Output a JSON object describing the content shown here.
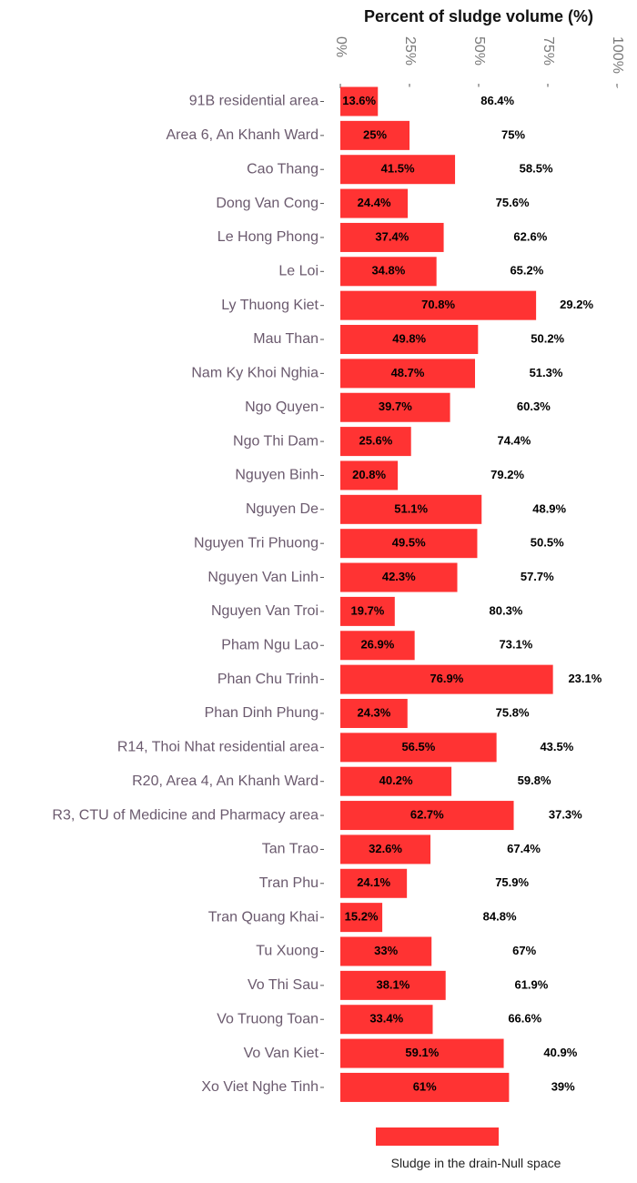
{
  "chart_data": {
    "type": "bar",
    "orientation": "horizontal",
    "stacked": true,
    "title": "Percent of sludge volume (%)",
    "xlim": [
      0,
      100
    ],
    "x_ticks": [
      {
        "value": 0,
        "label": "0%"
      },
      {
        "value": 25,
        "label": "25%"
      },
      {
        "value": 50,
        "label": "50%"
      },
      {
        "value": 75,
        "label": "75%"
      },
      {
        "value": 100,
        "label": "100%"
      }
    ],
    "grid": false,
    "legend_position": "bottom",
    "legend": {
      "items": [
        "Sludge in the drain",
        "Null space"
      ],
      "separator": "-"
    },
    "categories": [
      "91B residential area",
      "Area 6, An Khanh Ward",
      "Cao Thang",
      "Dong Van Cong",
      "Le Hong Phong",
      "Le Loi",
      "Ly Thuong Kiet",
      "Mau Than",
      "Nam Ky Khoi Nghia",
      "Ngo Quyen",
      "Ngo Thi Dam",
      "Nguyen Binh",
      "Nguyen De",
      "Nguyen Tri Phuong",
      "Nguyen Van Linh",
      "Nguyen Van Troi",
      "Pham Ngu Lao",
      "Phan Chu Trinh",
      "Phan Dinh Phung",
      "R14, Thoi Nhat residential area",
      "R20, Area 4, An Khanh Ward",
      "R3, CTU of Medicine and Pharmacy area",
      "Tan Trao",
      "Tran Phu",
      "Tran Quang Khai",
      "Tu Xuong",
      "Vo Thi Sau",
      "Vo Truong Toan",
      "Vo Van Kiet",
      "Xo Viet Nghe Tinh"
    ],
    "series": [
      {
        "name": "Sludge in the drain",
        "color": "#ff3333",
        "values": [
          13.6,
          25,
          41.5,
          24.4,
          37.4,
          34.8,
          70.8,
          49.8,
          48.7,
          39.7,
          25.6,
          20.8,
          51.1,
          49.5,
          42.3,
          19.7,
          26.9,
          76.9,
          24.3,
          56.5,
          40.2,
          62.7,
          32.6,
          24.1,
          15.2,
          33,
          38.1,
          33.4,
          59.1,
          61
        ],
        "labels": [
          "13.6%",
          "25%",
          "41.5%",
          "24.4%",
          "37.4%",
          "34.8%",
          "70.8%",
          "49.8%",
          "48.7%",
          "39.7%",
          "25.6%",
          "20.8%",
          "51.1%",
          "49.5%",
          "42.3%",
          "19.7%",
          "26.9%",
          "76.9%",
          "24.3%",
          "56.5%",
          "40.2%",
          "62.7%",
          "32.6%",
          "24.1%",
          "15.2%",
          "33%",
          "38.1%",
          "33.4%",
          "59.1%",
          "61%"
        ]
      },
      {
        "name": "Null space",
        "color": "#ffffff",
        "values": [
          86.4,
          75,
          58.5,
          75.6,
          62.6,
          65.2,
          29.2,
          50.2,
          51.3,
          60.3,
          74.4,
          79.2,
          48.9,
          50.5,
          57.7,
          80.3,
          73.1,
          23.1,
          75.8,
          43.5,
          59.8,
          37.3,
          67.4,
          75.9,
          84.8,
          67,
          61.9,
          66.6,
          40.9,
          39
        ],
        "labels": [
          "86.4%",
          "75%",
          "58.5%",
          "75.6%",
          "62.6%",
          "65.2%",
          "29.2%",
          "50.2%",
          "51.3%",
          "60.3%",
          "74.4%",
          "79.2%",
          "48.9%",
          "50.5%",
          "57.7%",
          "80.3%",
          "73.1%",
          "23.1%",
          "75.8%",
          "43.5%",
          "59.8%",
          "37.3%",
          "67.4%",
          "75.9%",
          "84.8%",
          "67%",
          "61.9%",
          "66.6%",
          "40.9%",
          "39%"
        ]
      }
    ]
  }
}
